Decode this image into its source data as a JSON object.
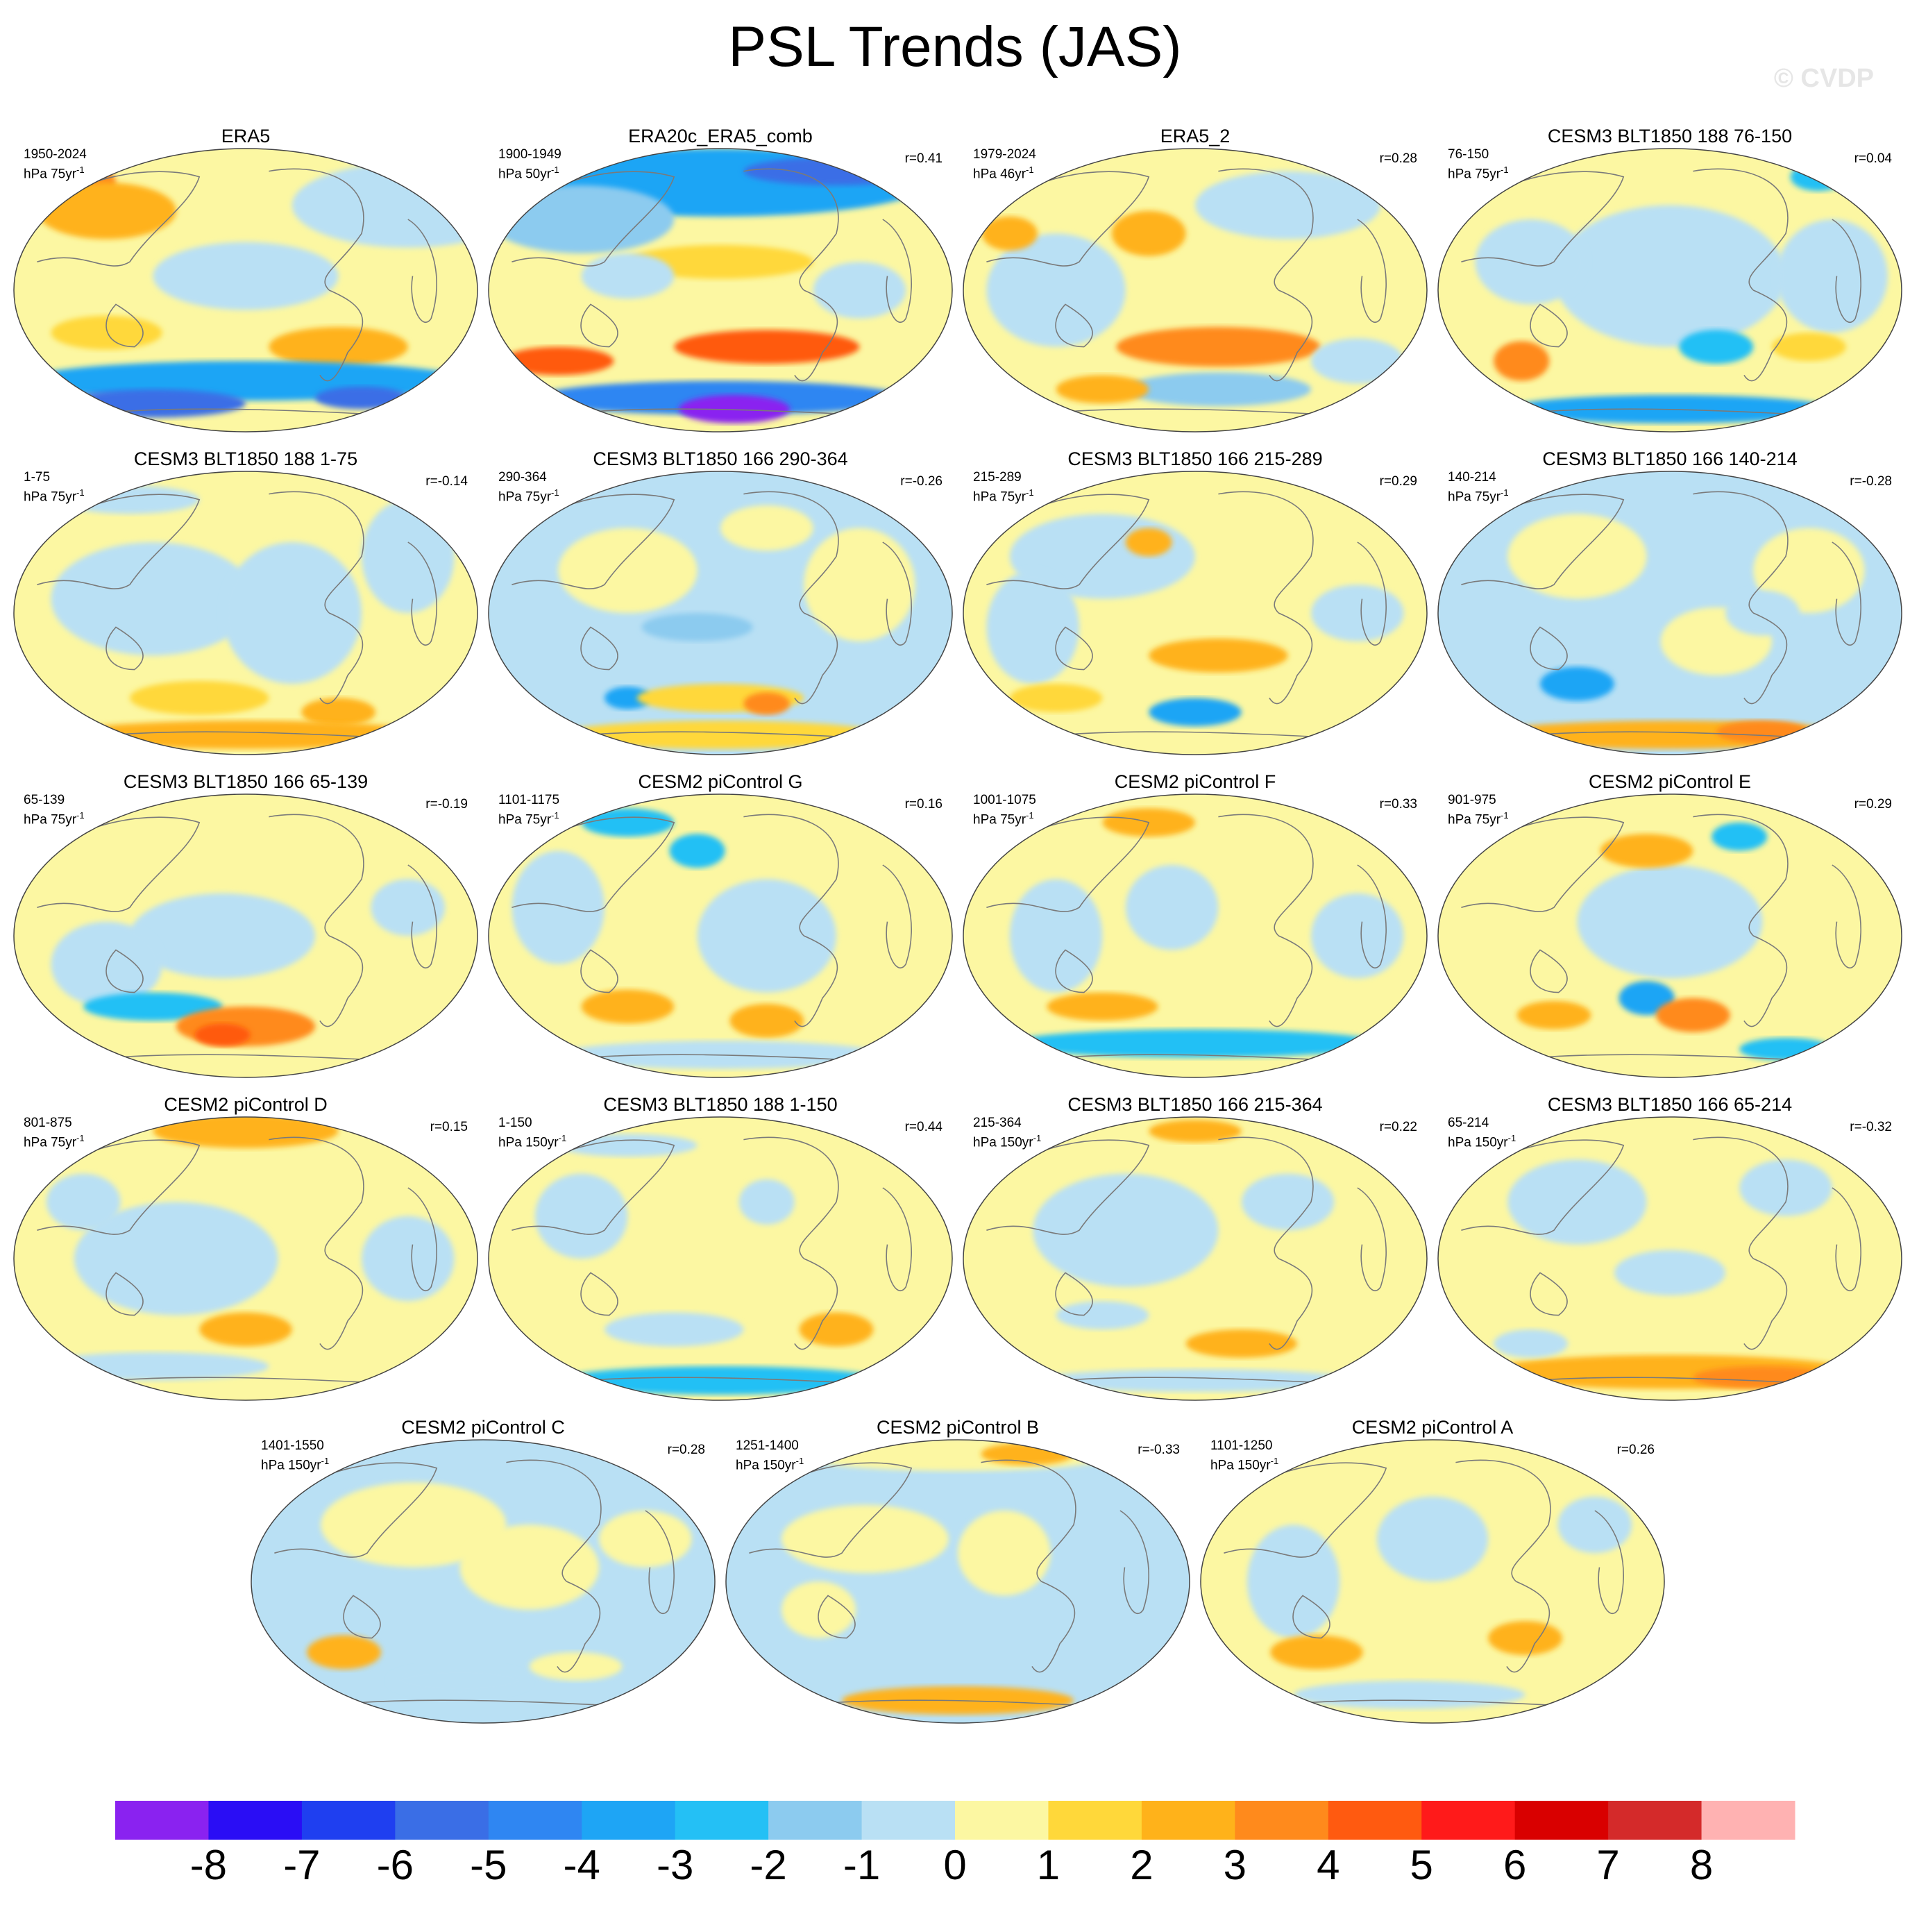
{
  "title": "PSL Trends (JAS)",
  "watermark": "© CVDP",
  "chart_data": {
    "type": "map-panels",
    "variable": "PSL",
    "season": "JAS",
    "projection": "Robinson (Pacific-centred)",
    "colorbar": {
      "ticks": [
        "-8",
        "-7",
        "-6",
        "-5",
        "-4",
        "-3",
        "-2",
        "-1",
        "0",
        "1",
        "2",
        "3",
        "4",
        "5",
        "6",
        "7",
        "8"
      ],
      "colors": [
        "#8a22f0",
        "#2a0df5",
        "#1f3ff0",
        "#3a6ee6",
        "#2f86f2",
        "#1ea5f5",
        "#24c0f5",
        "#8ccbef",
        "#b9e0f4",
        "#fcf7a2",
        "#ffd83a",
        "#ffb21a",
        "#ff8a1c",
        "#ff5a10",
        "#ff1a1a",
        "#d90000",
        "#d42a2a",
        "#ffb2b2"
      ]
    },
    "panels": [
      {
        "title": "ERA5",
        "years": "1950-2024",
        "units_base": "hPa 75yr",
        "units_exp": "-1",
        "r": "",
        "pattern": "era5"
      },
      {
        "title": "ERA20c_ERA5_comb",
        "years": "1900-1949",
        "units_base": "hPa 50yr",
        "units_exp": "-1",
        "r": "r=0.41",
        "pattern": "era20c"
      },
      {
        "title": "ERA5_2",
        "years": "1979-2024",
        "units_base": "hPa 46yr",
        "units_exp": "-1",
        "r": "r=0.28",
        "pattern": "era5b"
      },
      {
        "title": "CESM3 BLT1850 188 76-150",
        "years": "76-150",
        "units_base": "hPa 75yr",
        "units_exp": "-1",
        "r": "r=0.04",
        "pattern": "m1"
      },
      {
        "title": "CESM3 BLT1850 188 1-75",
        "years": "1-75",
        "units_base": "hPa 75yr",
        "units_exp": "-1",
        "r": "r=-0.14",
        "pattern": "m2"
      },
      {
        "title": "CESM3 BLT1850 166 290-364",
        "years": "290-364",
        "units_base": "hPa 75yr",
        "units_exp": "-1",
        "r": "r=-0.26",
        "pattern": "m3"
      },
      {
        "title": "CESM3 BLT1850 166 215-289",
        "years": "215-289",
        "units_base": "hPa 75yr",
        "units_exp": "-1",
        "r": "r=0.29",
        "pattern": "m4"
      },
      {
        "title": "CESM3 BLT1850 166 140-214",
        "years": "140-214",
        "units_base": "hPa 75yr",
        "units_exp": "-1",
        "r": "r=-0.28",
        "pattern": "m5"
      },
      {
        "title": "CESM3 BLT1850 166 65-139",
        "years": "65-139",
        "units_base": "hPa 75yr",
        "units_exp": "-1",
        "r": "r=-0.19",
        "pattern": "m6"
      },
      {
        "title": "CESM2 piControl G",
        "years": "1101-1175",
        "units_base": "hPa 75yr",
        "units_exp": "-1",
        "r": "r=0.16",
        "pattern": "m7"
      },
      {
        "title": "CESM2 piControl F",
        "years": "1001-1075",
        "units_base": "hPa 75yr",
        "units_exp": "-1",
        "r": "r=0.33",
        "pattern": "m8"
      },
      {
        "title": "CESM2 piControl E",
        "years": "901-975",
        "units_base": "hPa 75yr",
        "units_exp": "-1",
        "r": "r=0.29",
        "pattern": "m9"
      },
      {
        "title": "CESM2 piControl D",
        "years": "801-875",
        "units_base": "hPa 75yr",
        "units_exp": "-1",
        "r": "r=0.15",
        "pattern": "m10"
      },
      {
        "title": "CESM3 BLT1850 188 1-150",
        "years": "1-150",
        "units_base": "hPa 150yr",
        "units_exp": "-1",
        "r": "r=0.44",
        "pattern": "m11"
      },
      {
        "title": "CESM3 BLT1850 166 215-364",
        "years": "215-364",
        "units_base": "hPa 150yr",
        "units_exp": "-1",
        "r": "r=0.22",
        "pattern": "m12"
      },
      {
        "title": "CESM3 BLT1850 166 65-214",
        "years": "65-214",
        "units_base": "hPa 150yr",
        "units_exp": "-1",
        "r": "r=-0.32",
        "pattern": "m13"
      },
      {
        "title": "CESM2 piControl C",
        "years": "1401-1550",
        "units_base": "hPa 150yr",
        "units_exp": "-1",
        "r": "r=0.28",
        "pattern": "m14"
      },
      {
        "title": "CESM2 piControl B",
        "years": "1251-1400",
        "units_base": "hPa 150yr",
        "units_exp": "-1",
        "r": "r=-0.33",
        "pattern": "m15"
      },
      {
        "title": "CESM2 piControl A",
        "years": "1101-1250",
        "units_base": "hPa 150yr",
        "units_exp": "-1",
        "r": "r=0.26",
        "pattern": "m16"
      }
    ]
  }
}
